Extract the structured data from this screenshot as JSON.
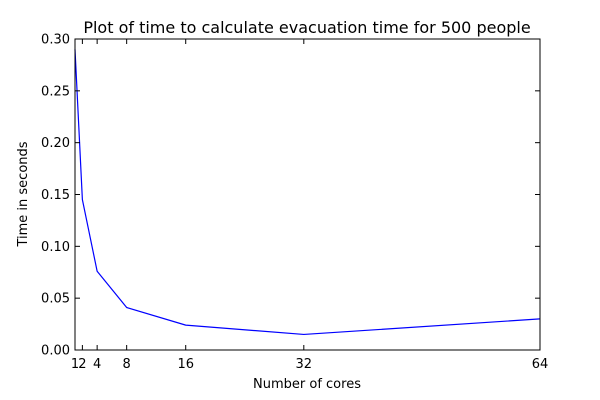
{
  "chart_data": {
    "type": "line",
    "title": "Plot of time to calculate evacuation time for 500 people",
    "xlabel": "Number of cores",
    "ylabel": "Time in seconds",
    "xlim": [
      1,
      64
    ],
    "ylim": [
      0,
      0.3
    ],
    "x_ticks": [
      1,
      2,
      4,
      8,
      16,
      32,
      64
    ],
    "x_tick_labels": [
      "1",
      "2",
      "4",
      "8",
      "16",
      "32",
      "64"
    ],
    "y_ticks": [
      0,
      0.05,
      0.1,
      0.15,
      0.2,
      0.25,
      0.3
    ],
    "y_tick_labels": [
      "0.00",
      "0.05",
      "0.10",
      "0.15",
      "0.20",
      "0.25",
      "0.30"
    ],
    "grid": false,
    "series": [
      {
        "x": [
          1,
          2,
          4,
          8,
          16,
          32,
          64
        ],
        "y": [
          0.29,
          0.145,
          0.076,
          0.041,
          0.024,
          0.015,
          0.03
        ],
        "color": "#0000ff"
      }
    ]
  }
}
